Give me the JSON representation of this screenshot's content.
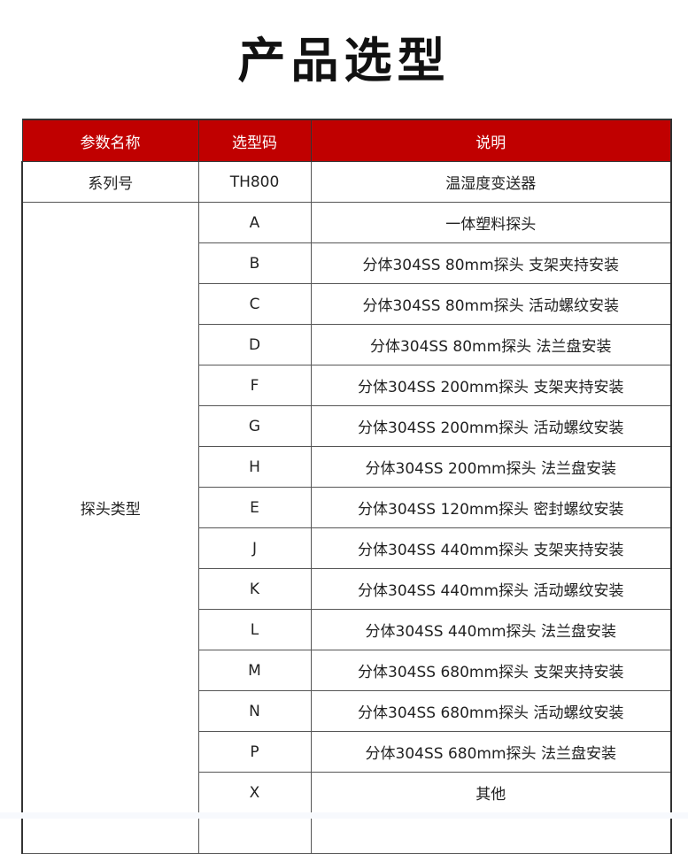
{
  "title": "产品选型",
  "headers": [
    "参数名称",
    "选型码",
    "说明"
  ],
  "series_row": {
    "param": "系列号",
    "code": "TH800",
    "desc": "温湿度变送器"
  },
  "probe_group": {
    "param": "探头类型",
    "rows": [
      {
        "code": "A",
        "desc": "一体塑料探头"
      },
      {
        "code": "B",
        "desc": "分体304SS 80mm探头 支架夹持安装"
      },
      {
        "code": "C",
        "desc": "分体304SS 80mm探头 活动螺纹安装"
      },
      {
        "code": "D",
        "desc": "分体304SS 80mm探头 法兰盘安装"
      },
      {
        "code": "F",
        "desc": "分体304SS 200mm探头 支架夹持安装"
      },
      {
        "code": "G",
        "desc": "分体304SS 200mm探头 活动螺纹安装"
      },
      {
        "code": "H",
        "desc": "分体304SS 200mm探头 法兰盘安装"
      },
      {
        "code": "E",
        "desc": "分体304SS 120mm探头 密封螺纹安装"
      },
      {
        "code": "J",
        "desc": "分体304SS 440mm探头 支架夹持安装"
      },
      {
        "code": "K",
        "desc": "分体304SS 440mm探头 活动螺纹安装"
      },
      {
        "code": "L",
        "desc": "分体304SS 440mm探头 法兰盘安装"
      },
      {
        "code": "M",
        "desc": "分体304SS 680mm探头 支架夹持安装"
      },
      {
        "code": "N",
        "desc": "分体304SS 680mm探头 活动螺纹安装"
      },
      {
        "code": "P",
        "desc": "分体304SS 680mm探头 法兰盘安装"
      },
      {
        "code": "X",
        "desc": "其他"
      }
    ]
  },
  "colors": {
    "header_bg": "#c00000",
    "header_text": "#ffffff"
  }
}
